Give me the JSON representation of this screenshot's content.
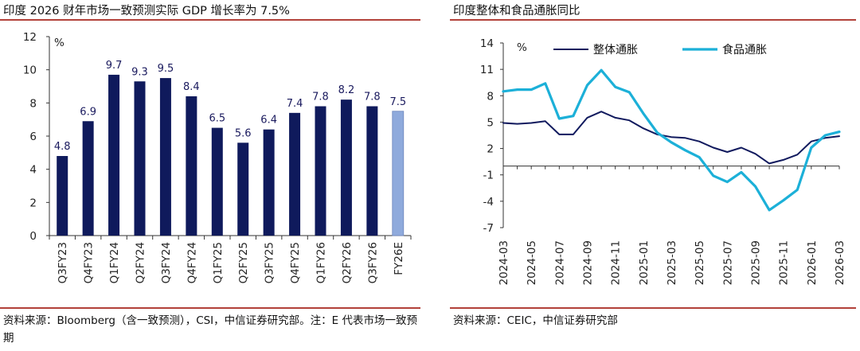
{
  "left": {
    "title": "印度 2026 财年市场一致预测实际 GDP 增长率为 7.5%",
    "source": "资料来源：Bloomberg（含一致预测），CSI，中信证券研究部。注：E 代表市场一致预期",
    "chart_data": {
      "type": "bar",
      "title": "印度 2026 财年市场一致预测实际 GDP 增长率为 7.5%",
      "unit": "%",
      "categories": [
        "Q3FY23",
        "Q4FY23",
        "Q1FY24",
        "Q2FY24",
        "Q3FY24",
        "Q4FY24",
        "Q1FY25",
        "Q2FY25",
        "Q3FY25",
        "Q4FY25",
        "Q1FY26",
        "Q2FY26",
        "Q3FY26",
        "FY26E"
      ],
      "values": [
        4.8,
        6.9,
        9.7,
        9.3,
        9.5,
        8.4,
        6.5,
        5.6,
        6.4,
        7.4,
        7.8,
        8.2,
        7.8,
        7.5
      ],
      "value_labels": [
        "4.8",
        "6.9",
        "9.7",
        "9.3",
        "9.5",
        "8.4",
        "6.5",
        "5.6",
        "6.4",
        "7.4",
        "7.8",
        "8.2",
        "7.8",
        "7.5"
      ],
      "ylim": [
        0,
        12
      ],
      "yticks": [
        0,
        2,
        4,
        6,
        8,
        10,
        12
      ],
      "colors": {
        "actual": "#0f1a5c",
        "estimate": "#8faadc"
      },
      "grid": false
    }
  },
  "right": {
    "title": "印度整体和食品通胀同比",
    "source": "资料来源：CEIC，中信证券研究部",
    "chart_data": {
      "type": "line",
      "title": "印度整体和食品通胀同比",
      "unit": "%",
      "x": [
        "2024-03",
        "2024-04",
        "2024-05",
        "2024-06",
        "2024-07",
        "2024-08",
        "2024-09",
        "2024-10",
        "2024-11",
        "2024-12",
        "2025-01",
        "2025-02",
        "2025-03",
        "2025-04",
        "2025-05",
        "2025-06",
        "2025-07",
        "2025-08",
        "2025-09",
        "2025-10",
        "2025-11",
        "2025-12",
        "2026-01",
        "2026-02",
        "2026-03"
      ],
      "xticks": [
        "2024-03",
        "2024-05",
        "2024-07",
        "2024-09",
        "2024-11",
        "2025-01",
        "2025-03",
        "2025-05",
        "2025-07",
        "2025-09",
        "2025-11",
        "2026-01",
        "2026-03"
      ],
      "ylim": [
        -7,
        14
      ],
      "yticks": [
        14,
        11,
        8,
        5,
        2,
        -1,
        -4,
        -7
      ],
      "legend_position": "top",
      "series": [
        {
          "name": "整体通胀",
          "color": "#111a5e",
          "values": [
            4.9,
            4.8,
            4.9,
            5.1,
            3.6,
            3.6,
            5.5,
            6.2,
            5.5,
            5.2,
            4.3,
            3.6,
            3.3,
            3.2,
            2.8,
            2.1,
            1.6,
            2.1,
            1.4,
            0.3,
            0.7,
            1.3,
            2.8,
            3.2,
            3.4
          ]
        },
        {
          "name": "食品通胀",
          "color": "#1cb0d8",
          "values": [
            8.5,
            8.7,
            8.7,
            9.4,
            5.4,
            5.7,
            9.2,
            10.9,
            9.0,
            8.4,
            6.0,
            3.8,
            2.7,
            1.8,
            1.0,
            -1.1,
            -1.8,
            -0.7,
            -2.3,
            -5.0,
            -3.9,
            -2.7,
            2.1,
            3.5,
            3.9
          ]
        }
      ],
      "grid": false
    }
  }
}
